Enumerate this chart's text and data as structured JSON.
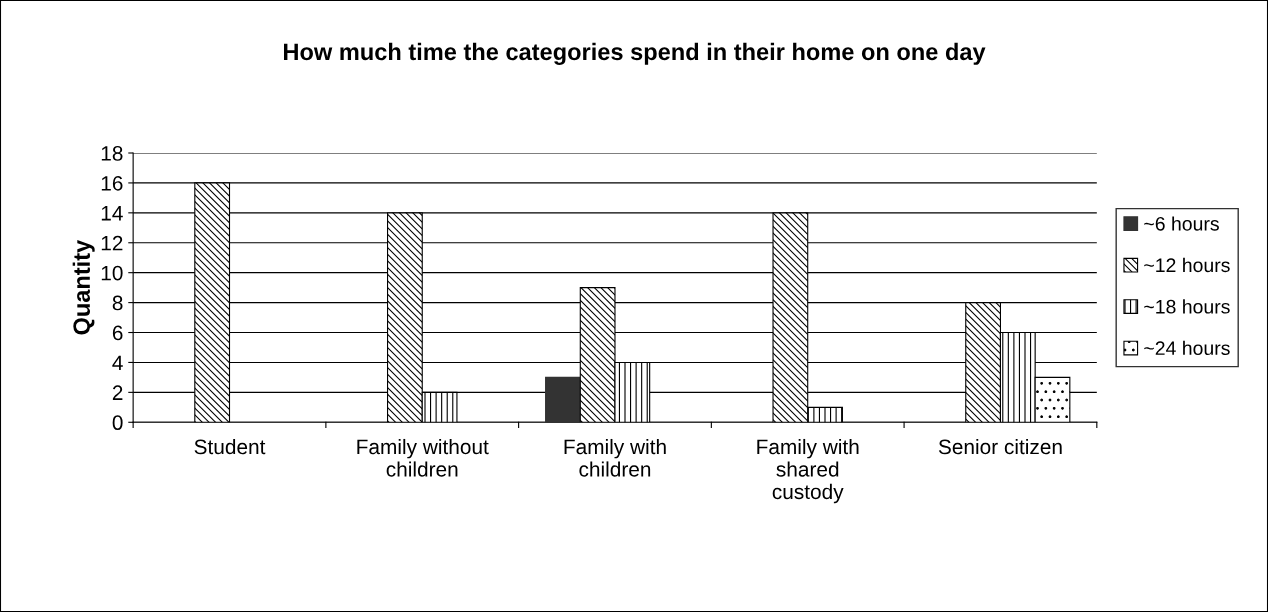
{
  "chart_data": {
    "type": "bar",
    "title": "How much time the categories spend in their home on one day",
    "ylabel": "Quantity",
    "categories": [
      "Student",
      "Family without\nchildren",
      "Family with\nchildren",
      "Family with\nshared\ncustody",
      "Senior citizen"
    ],
    "series": [
      {
        "name": "~6 hours",
        "color": "#333333",
        "values": [
          null,
          null,
          3,
          null,
          null
        ]
      },
      {
        "name": "~12 hours",
        "color": "#000000",
        "values": [
          16,
          14,
          9,
          14,
          8
        ]
      },
      {
        "name": "~18 hours",
        "color": "#000000",
        "values": [
          null,
          2,
          4,
          1,
          6
        ]
      },
      {
        "name": "~24 hours",
        "color": "#000000",
        "values": [
          null,
          null,
          null,
          null,
          3
        ]
      }
    ],
    "ylim": [
      0,
      18
    ],
    "yticks": [
      0,
      2,
      4,
      6,
      8,
      10,
      12,
      14,
      16,
      18
    ],
    "grid": "y",
    "legend": "right"
  }
}
